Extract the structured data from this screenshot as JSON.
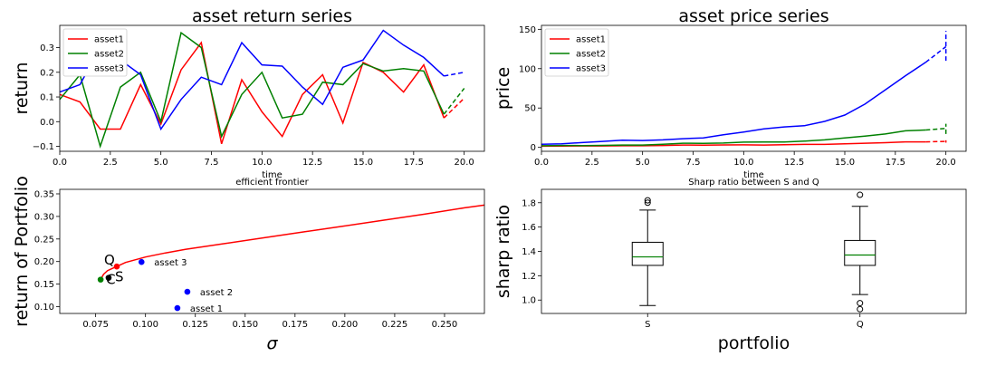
{
  "chart_data": [
    {
      "type": "line",
      "title": "asset return series",
      "xlabel": "time",
      "ylabel": "return",
      "xlim": [
        0,
        21
      ],
      "ylim": [
        -0.12,
        0.39
      ],
      "xticks": [
        0.0,
        2.5,
        5.0,
        7.5,
        10.0,
        12.5,
        15.0,
        17.5,
        20.0
      ],
      "xtick_labels": [
        "0.0",
        "2.5",
        "5.0",
        "7.5",
        "10.0",
        "12.5",
        "15.0",
        "17.5",
        "20.0"
      ],
      "yticks": [
        -0.1,
        0.0,
        0.1,
        0.2,
        0.3
      ],
      "ytick_labels": [
        "−0.1",
        "0.0",
        "0.1",
        "0.2",
        "0.3"
      ],
      "legend": "top-left",
      "series": [
        {
          "name": "asset1",
          "color": "#ff0000",
          "x": [
            0,
            1,
            2,
            3,
            4,
            5,
            6,
            7,
            8,
            9,
            10,
            11,
            12,
            13,
            14,
            15,
            16,
            17,
            18,
            19
          ],
          "values": [
            0.11,
            0.08,
            -0.03,
            -0.03,
            0.15,
            -0.01,
            0.21,
            0.32,
            -0.09,
            0.17,
            0.04,
            -0.06,
            0.11,
            0.19,
            -0.005,
            0.24,
            0.2,
            0.12,
            0.23,
            0.015
          ],
          "forecast_x": [
            19,
            20
          ],
          "forecast_values": [
            0.015,
            0.095
          ]
        },
        {
          "name": "asset2",
          "color": "#008000",
          "x": [
            0,
            1,
            2,
            3,
            4,
            5,
            6,
            7,
            8,
            9,
            10,
            11,
            12,
            13,
            14,
            15,
            16,
            17,
            18,
            19
          ],
          "values": [
            0.09,
            0.19,
            -0.1,
            0.14,
            0.2,
            0.0,
            0.36,
            0.3,
            -0.06,
            0.11,
            0.2,
            0.015,
            0.03,
            0.16,
            0.15,
            0.235,
            0.205,
            0.215,
            0.205,
            0.03
          ],
          "forecast_x": [
            19,
            20
          ],
          "forecast_values": [
            0.03,
            0.135
          ]
        },
        {
          "name": "asset3",
          "color": "#0000ff",
          "x": [
            0,
            1,
            2,
            3,
            4,
            5,
            6,
            7,
            8,
            9,
            10,
            11,
            12,
            13,
            14,
            15,
            16,
            17,
            18,
            19
          ],
          "values": [
            0.12,
            0.15,
            0.3,
            0.25,
            0.19,
            -0.03,
            0.09,
            0.18,
            0.15,
            0.32,
            0.23,
            0.225,
            0.14,
            0.07,
            0.22,
            0.25,
            0.37,
            0.31,
            0.26,
            0.185
          ],
          "forecast_x": [
            19,
            20
          ],
          "forecast_values": [
            0.185,
            0.2
          ]
        }
      ]
    },
    {
      "type": "line",
      "title": "asset price series",
      "xlabel": "time",
      "ylabel": "price",
      "xlim": [
        0,
        21
      ],
      "ylim": [
        -5,
        155
      ],
      "xticks": [
        0.0,
        2.5,
        5.0,
        7.5,
        10.0,
        12.5,
        15.0,
        17.5,
        20.0
      ],
      "xtick_labels": [
        "0.0",
        "2.5",
        "5.0",
        "7.5",
        "10.0",
        "12.5",
        "15.0",
        "17.5",
        "20.0"
      ],
      "yticks": [
        0,
        50,
        100,
        150
      ],
      "ytick_labels": [
        "0",
        "50",
        "100",
        "150"
      ],
      "legend": "top-left",
      "series": [
        {
          "name": "asset1",
          "color": "#ff0000",
          "x": [
            0,
            1,
            2,
            3,
            4,
            5,
            6,
            7,
            8,
            9,
            10,
            11,
            12,
            13,
            14,
            15,
            16,
            17,
            18,
            19
          ],
          "values": [
            1.5,
            1.7,
            1.8,
            1.8,
            2.0,
            2.0,
            2.4,
            3.0,
            2.8,
            3.1,
            3.2,
            3.0,
            3.3,
            3.8,
            3.8,
            4.5,
            5.3,
            5.9,
            7.0,
            7.0
          ],
          "forecast_x": [
            19,
            20
          ],
          "forecast_values": [
            7.0,
            7.6
          ],
          "forecast_range": [
            6,
            9
          ]
        },
        {
          "name": "asset2",
          "color": "#008000",
          "x": [
            0,
            1,
            2,
            3,
            4,
            5,
            6,
            7,
            8,
            9,
            10,
            11,
            12,
            13,
            14,
            15,
            16,
            17,
            18,
            19
          ],
          "values": [
            2,
            2.4,
            2.2,
            2.5,
            3.0,
            3.0,
            4.0,
            5.3,
            5.0,
            5.5,
            6.6,
            6.7,
            6.8,
            7.9,
            9.5,
            12,
            14.2,
            17,
            21,
            22
          ],
          "forecast_x": [
            19,
            20
          ],
          "forecast_values": [
            22,
            24
          ],
          "forecast_range": [
            17,
            30
          ]
        },
        {
          "name": "asset3",
          "color": "#0000ff",
          "x": [
            0,
            1,
            2,
            3,
            4,
            5,
            6,
            7,
            8,
            9,
            10,
            11,
            12,
            13,
            14,
            15,
            16,
            17,
            18,
            19
          ],
          "values": [
            4,
            4.6,
            6,
            7.5,
            9,
            8.7,
            9.5,
            11,
            12,
            16,
            19.5,
            23.5,
            26,
            27.5,
            33,
            41,
            55,
            73,
            91,
            108
          ],
          "forecast_x": [
            19,
            20
          ],
          "forecast_values": [
            108,
            128
          ],
          "forecast_range": [
            110,
            148
          ]
        }
      ]
    },
    {
      "type": "scatter",
      "title": "efficient frontier",
      "xlabel": "σ",
      "ylabel": "return of Portfolio",
      "xlim": [
        0.057,
        0.27
      ],
      "ylim": [
        0.085,
        0.36
      ],
      "xticks": [
        0.075,
        0.1,
        0.125,
        0.15,
        0.175,
        0.2,
        0.225,
        0.25
      ],
      "xtick_labels": [
        "0.075",
        "0.100",
        "0.125",
        "0.150",
        "0.175",
        "0.200",
        "0.225",
        "0.250"
      ],
      "yticks": [
        0.1,
        0.15,
        0.2,
        0.25,
        0.3,
        0.35
      ],
      "ytick_labels": [
        "0.10",
        "0.15",
        "0.20",
        "0.25",
        "0.30",
        "0.35"
      ],
      "frontier": {
        "color": "#ff0000",
        "x": [
          0.0775,
          0.079,
          0.081,
          0.0835,
          0.086,
          0.09,
          0.095,
          0.1,
          0.11,
          0.12,
          0.14,
          0.16,
          0.18,
          0.2,
          0.22,
          0.24,
          0.26,
          0.27
        ],
        "y": [
          0.16,
          0.172,
          0.18,
          0.185,
          0.19,
          0.198,
          0.204,
          0.21,
          0.219,
          0.227,
          0.24,
          0.253,
          0.266,
          0.279,
          0.292,
          0.305,
          0.319,
          0.325
        ]
      },
      "points": [
        {
          "label": "asset 3",
          "x": 0.098,
          "y": 0.199,
          "color": "#0000ff"
        },
        {
          "label": "asset 2",
          "x": 0.121,
          "y": 0.133,
          "color": "#0000ff"
        },
        {
          "label": "asset 1",
          "x": 0.116,
          "y": 0.097,
          "color": "#0000ff"
        },
        {
          "label": "Q",
          "x": 0.0856,
          "y": 0.189,
          "color": "#ff0000"
        },
        {
          "label": "S",
          "x": 0.0815,
          "y": 0.164,
          "color": "#000000"
        },
        {
          "label": "C",
          "x": 0.0775,
          "y": 0.16,
          "color": "#008000"
        }
      ]
    },
    {
      "type": "box",
      "title": "Sharp ratio between S and Q",
      "xlabel": "portfolio",
      "ylabel": "sharp ratio",
      "ylim": [
        0.89,
        1.91
      ],
      "yticks": [
        1.0,
        1.2,
        1.4,
        1.6,
        1.8
      ],
      "ytick_labels": [
        "1.0",
        "1.2",
        "1.4",
        "1.6",
        "1.8"
      ],
      "categories": [
        "S",
        "Q"
      ],
      "boxes": [
        {
          "name": "S",
          "whisker_low": 0.955,
          "q1": 1.285,
          "median": 1.355,
          "q3": 1.475,
          "whisker_high": 1.74,
          "outliers": [
            1.8,
            1.82
          ]
        },
        {
          "name": "Q",
          "whisker_low": 1.045,
          "q1": 1.285,
          "median": 1.37,
          "q3": 1.49,
          "whisker_high": 1.77,
          "outliers": [
            1.865,
            0.975,
            0.925
          ]
        }
      ]
    }
  ]
}
